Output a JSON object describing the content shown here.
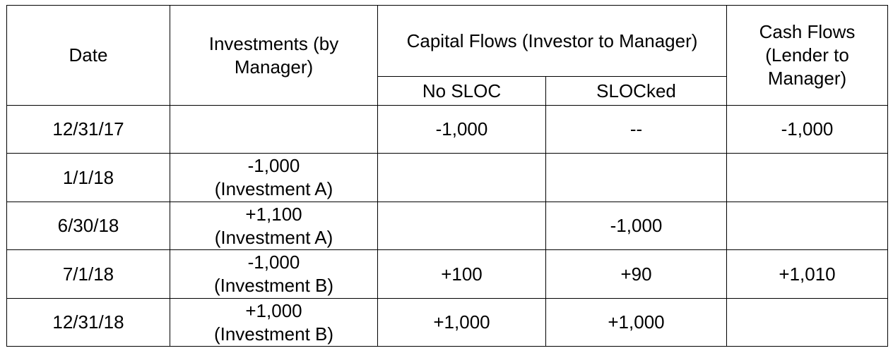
{
  "headers": {
    "date": "Date",
    "investments": "Investments (by Manager)",
    "capital_flows": "Capital Flows (Investor to Manager)",
    "cash_flows": "Cash Flows (Lender to Manager)",
    "no_sloc": "No SLOC",
    "slocked": "SLOCked"
  },
  "rows": [
    {
      "date": "12/31/17",
      "investment_amount": "",
      "investment_name": "",
      "no_sloc": "-1,000",
      "slocked": "--",
      "cash_flows": "-1,000"
    },
    {
      "date": "1/1/18",
      "investment_amount": "-1,000",
      "investment_name": "(Investment A)",
      "no_sloc": "",
      "slocked": "",
      "cash_flows": ""
    },
    {
      "date": "6/30/18",
      "investment_amount": "+1,100",
      "investment_name": "(Investment A)",
      "no_sloc": "",
      "slocked": "-1,000",
      "cash_flows": ""
    },
    {
      "date": "7/1/18",
      "investment_amount": "-1,000",
      "investment_name": "(Investment B)",
      "no_sloc": "+100",
      "slocked": "+90",
      "cash_flows": "+1,010"
    },
    {
      "date": "12/31/18",
      "investment_amount": "+1,000",
      "investment_name": "(Investment B)",
      "no_sloc": "+1,000",
      "slocked": "+1,000",
      "cash_flows": ""
    }
  ]
}
